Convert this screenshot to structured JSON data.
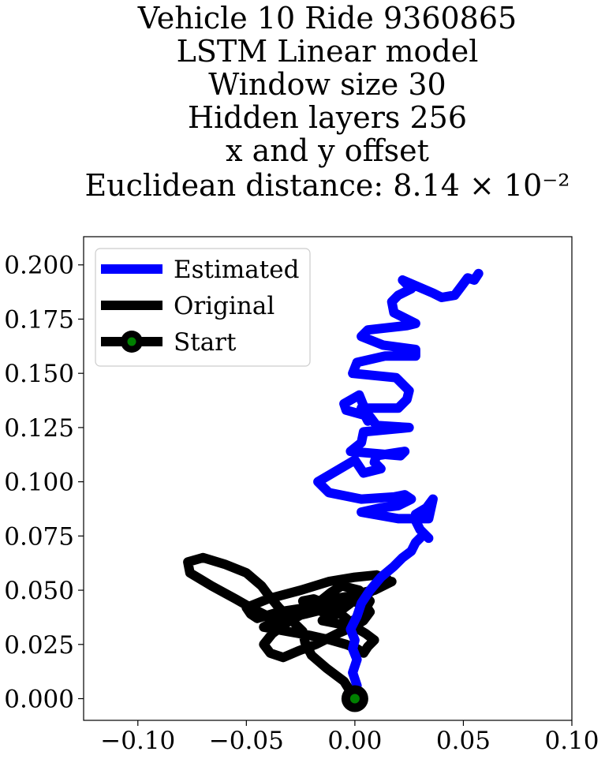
{
  "chart_data": {
    "type": "line",
    "title_lines": [
      "Vehicle 10 Ride 9360865",
      "LSTM Linear model",
      "Window size 30",
      "Hidden layers 256",
      "x and y offset",
      "Euclidean distance: 8.14 × 10⁻²"
    ],
    "xlabel": "",
    "ylabel": "",
    "xlim": [
      -0.125,
      0.1
    ],
    "ylim": [
      -0.01,
      0.213
    ],
    "x_ticks": [
      -0.1,
      -0.05,
      0.0,
      0.05,
      0.1
    ],
    "x_tick_labels": [
      "−0.10",
      "−0.05",
      "0.00",
      "0.05",
      "0.10"
    ],
    "y_ticks": [
      0.0,
      0.025,
      0.05,
      0.075,
      0.1,
      0.125,
      0.15,
      0.175,
      0.2
    ],
    "y_tick_labels": [
      "0.000",
      "0.025",
      "0.050",
      "0.075",
      "0.100",
      "0.125",
      "0.150",
      "0.175",
      "0.200"
    ],
    "grid": false,
    "legend_position": "top-left",
    "legend": [
      {
        "label": "Estimated",
        "color": "#0000ff",
        "marker": "none"
      },
      {
        "label": "Original",
        "color": "#000000",
        "marker": "none"
      },
      {
        "label": "Start",
        "color": "#000000",
        "marker": "circle",
        "marker_face": "#008000"
      }
    ],
    "series": [
      {
        "name": "Estimated",
        "color": "#0000ff",
        "x": [
          0.0,
          0.001,
          -0.001,
          0.001,
          -0.001,
          0.0,
          -0.002,
          0.001,
          0.003,
          0.007,
          0.012,
          0.018,
          0.022,
          0.026,
          0.028,
          0.032,
          0.034,
          0.03,
          0.028,
          0.028,
          0.033,
          0.036,
          0.034,
          0.02,
          0.003,
          0.012,
          0.02,
          0.026,
          0.023,
          0.018,
          0.003,
          -0.012,
          -0.017,
          0.0,
          0.004,
          0.012,
          0.009,
          0.01,
          0.023,
          0.021,
          -0.002,
          0.003,
          0.004,
          0.025,
          0.01,
          0.007,
          -0.004,
          -0.005,
          0.002,
          0.004,
          0.006,
          0.003,
          0.02,
          0.024,
          0.025,
          0.019,
          -0.001,
          0.001,
          0.014,
          0.028,
          0.028,
          0.013,
          0.003,
          0.006,
          0.024,
          0.028,
          0.018,
          0.017,
          0.02,
          0.026,
          0.022,
          0.036,
          0.04,
          0.046,
          0.049,
          0.052,
          0.055,
          0.057
        ],
        "y": [
          0.0,
          0.006,
          0.012,
          0.018,
          0.023,
          0.027,
          0.032,
          0.038,
          0.044,
          0.05,
          0.056,
          0.061,
          0.065,
          0.068,
          0.072,
          0.076,
          0.074,
          0.078,
          0.082,
          0.085,
          0.088,
          0.092,
          0.083,
          0.083,
          0.086,
          0.088,
          0.089,
          0.092,
          0.094,
          0.093,
          0.092,
          0.095,
          0.1,
          0.11,
          0.104,
          0.106,
          0.109,
          0.112,
          0.114,
          0.112,
          0.114,
          0.118,
          0.123,
          0.125,
          0.126,
          0.13,
          0.133,
          0.136,
          0.14,
          0.135,
          0.128,
          0.134,
          0.134,
          0.138,
          0.142,
          0.148,
          0.15,
          0.155,
          0.158,
          0.158,
          0.161,
          0.163,
          0.167,
          0.17,
          0.172,
          0.173,
          0.178,
          0.183,
          0.186,
          0.189,
          0.193,
          0.187,
          0.185,
          0.186,
          0.19,
          0.194,
          0.193,
          0.196
        ]
      },
      {
        "name": "Original",
        "color": "#000000",
        "x": [
          0.0,
          -0.005,
          -0.013,
          -0.02,
          -0.023,
          -0.024,
          -0.029,
          -0.035,
          -0.04,
          -0.043,
          -0.05,
          -0.06,
          -0.07,
          -0.077,
          -0.076,
          -0.066,
          -0.055,
          -0.048,
          -0.04,
          -0.025,
          -0.015,
          -0.022,
          -0.035,
          -0.045,
          -0.048,
          -0.05,
          -0.04,
          -0.025,
          -0.012,
          0.0,
          0.01,
          0.015,
          0.012,
          0.005,
          -0.003,
          -0.01,
          -0.015,
          -0.005,
          0.003,
          0.007,
          0.002,
          -0.006,
          -0.011,
          -0.016,
          -0.004,
          0.008,
          0.013,
          0.017,
          0.009,
          -0.002,
          -0.01,
          -0.02,
          -0.03,
          -0.038,
          -0.042,
          -0.039,
          -0.033,
          -0.026,
          -0.018,
          -0.012,
          -0.008,
          -0.001,
          0.004,
          0.007,
          0.005,
          -0.001,
          -0.008,
          -0.015,
          -0.023,
          -0.032,
          -0.038,
          -0.042,
          -0.031,
          -0.02,
          -0.011,
          -0.004,
          0.001,
          0.004,
          0.006,
          0.009,
          0.005,
          0.0,
          -0.004,
          -0.009,
          -0.014,
          -0.019,
          -0.024,
          -0.02,
          -0.015,
          -0.01,
          -0.006,
          -0.002,
          0.0,
          0.002
        ],
        "y": [
          0.0,
          0.008,
          0.014,
          0.02,
          0.026,
          0.031,
          0.036,
          0.042,
          0.048,
          0.052,
          0.058,
          0.062,
          0.065,
          0.063,
          0.058,
          0.052,
          0.046,
          0.042,
          0.038,
          0.039,
          0.041,
          0.042,
          0.04,
          0.037,
          0.039,
          0.042,
          0.046,
          0.05,
          0.054,
          0.056,
          0.057,
          0.055,
          0.052,
          0.048,
          0.044,
          0.04,
          0.036,
          0.034,
          0.038,
          0.045,
          0.05,
          0.052,
          0.049,
          0.045,
          0.047,
          0.05,
          0.053,
          0.054,
          0.05,
          0.047,
          0.044,
          0.041,
          0.036,
          0.03,
          0.025,
          0.021,
          0.019,
          0.022,
          0.025,
          0.028,
          0.03,
          0.033,
          0.036,
          0.04,
          0.043,
          0.045,
          0.044,
          0.041,
          0.039,
          0.037,
          0.035,
          0.033,
          0.031,
          0.029,
          0.027,
          0.025,
          0.023,
          0.021,
          0.024,
          0.027,
          0.03,
          0.033,
          0.037,
          0.041,
          0.044,
          0.046,
          0.045,
          0.043,
          0.04,
          0.038,
          0.041,
          0.044,
          0.047,
          0.05
        ]
      }
    ],
    "start_point": {
      "name": "Start",
      "x": 0.0,
      "y": 0.0,
      "edge_color": "#000000",
      "face_color": "#008000"
    }
  }
}
